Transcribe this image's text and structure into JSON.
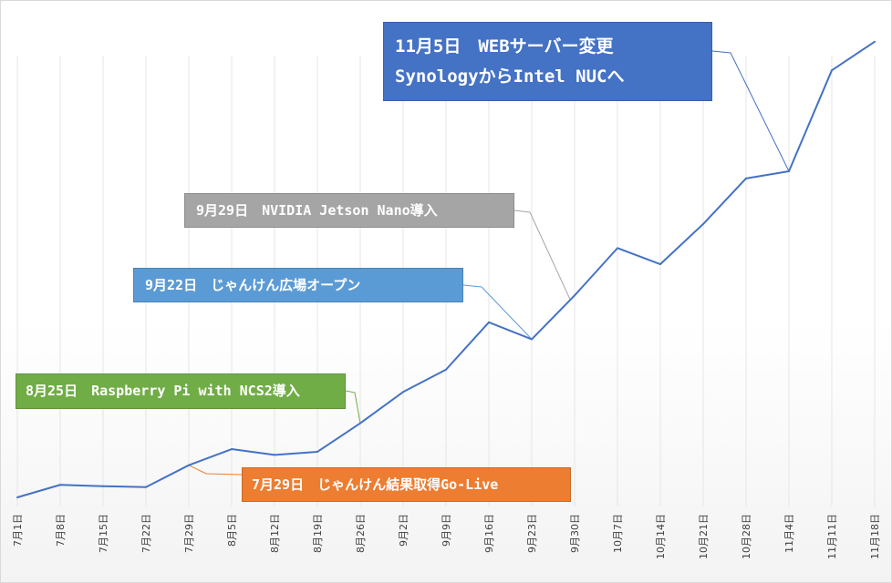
{
  "chart_data": {
    "type": "line",
    "categories": [
      "7月1日",
      "7月8日",
      "7月15日",
      "7月22日",
      "7月29日",
      "8月5日",
      "8月12日",
      "8月19日",
      "8月26日",
      "9月2日",
      "9月9日",
      "9月16日",
      "9月23日",
      "9月30日",
      "10月7日",
      "10月14日",
      "10月21日",
      "10月28日",
      "11月4日",
      "11月11日",
      "11月18日"
    ],
    "values": [
      0,
      14,
      12.5,
      11.5,
      36,
      54,
      47.5,
      51,
      83,
      118,
      143,
      196,
      177,
      226,
      279,
      261,
      306,
      357,
      365,
      478,
      510
    ],
    "ylim": [
      0,
      520
    ],
    "y_axis_visible": false,
    "grid": "vertical",
    "legend": "none",
    "series_color": "#4472C4",
    "annotations": [
      {
        "lines": [
          "11月5日　WEBサーバー変更",
          "SynologyからIntel NUCへ"
        ],
        "color": "#4472C4",
        "target_index": 18
      },
      {
        "lines": [
          "9月29日　NVIDIA Jetson Nano導入"
        ],
        "color": "#A5A5A5",
        "target_index": 12.9
      },
      {
        "lines": [
          "9月22日　じゃんけん広場オープン"
        ],
        "color": "#5B9BD5",
        "target_index": 12
      },
      {
        "lines": [
          "8月25日　Raspberry Pi with NCS2導入"
        ],
        "color": "#70AD47",
        "target_index": 8
      },
      {
        "lines": [
          "7月29日　じゃんけん結果取得Go-Live"
        ],
        "color": "#ED7D31",
        "target_index": 4
      }
    ]
  }
}
